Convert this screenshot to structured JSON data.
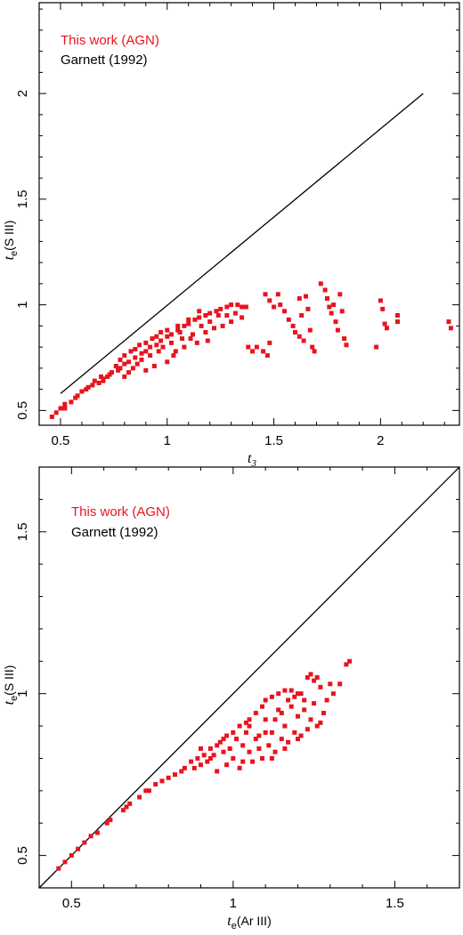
{
  "chart_data": [
    {
      "type": "scatter",
      "xlabel": {
        "var": "t",
        "sub": "3",
        "paren": ""
      },
      "ylabel": {
        "var": "t",
        "sub": "e",
        "paren": "(S III)"
      },
      "xlim": [
        0.4,
        2.37
      ],
      "ylim": [
        0.43,
        2.43
      ],
      "xticks": [
        0.5,
        1,
        1.5,
        2
      ],
      "xtick_labels": [
        "0.5",
        "1",
        "1.5",
        "2"
      ],
      "yticks": [
        0.5,
        1,
        1.5,
        2
      ],
      "ytick_labels": [
        "0.5",
        "1",
        "1.5",
        "2"
      ],
      "legend": {
        "placement": "top-left",
        "entries": [
          "This work (AGN)",
          "Garnett (1992)"
        ]
      },
      "series": [
        {
          "name": "This work (AGN)",
          "color": "#e8141e",
          "points": [
            [
              0.46,
              0.47
            ],
            [
              0.48,
              0.49
            ],
            [
              0.5,
              0.51
            ],
            [
              0.52,
              0.53
            ],
            [
              0.52,
              0.51
            ],
            [
              0.55,
              0.54
            ],
            [
              0.57,
              0.56
            ],
            [
              0.58,
              0.57
            ],
            [
              0.6,
              0.59
            ],
            [
              0.62,
              0.6
            ],
            [
              0.65,
              0.62
            ],
            [
              0.68,
              0.63
            ],
            [
              0.7,
              0.65
            ],
            [
              0.72,
              0.66
            ],
            [
              0.74,
              0.68
            ],
            [
              0.77,
              0.69
            ],
            [
              0.78,
              0.7
            ],
            [
              0.8,
              0.72
            ],
            [
              0.82,
              0.73
            ],
            [
              0.85,
              0.75
            ],
            [
              0.88,
              0.77
            ],
            [
              0.9,
              0.78
            ],
            [
              0.92,
              0.8
            ],
            [
              0.95,
              0.81
            ],
            [
              0.97,
              0.83
            ],
            [
              1.0,
              0.85
            ],
            [
              1.02,
              0.86
            ],
            [
              1.05,
              0.88
            ],
            [
              1.08,
              0.9
            ],
            [
              1.1,
              0.91
            ],
            [
              1.13,
              0.93
            ],
            [
              1.15,
              0.94
            ],
            [
              1.18,
              0.95
            ],
            [
              1.2,
              0.96
            ],
            [
              1.23,
              0.97
            ],
            [
              1.25,
              0.98
            ],
            [
              1.28,
              0.99
            ],
            [
              1.3,
              1.0
            ],
            [
              1.33,
              1.0
            ],
            [
              1.35,
              0.99
            ],
            [
              0.7,
              0.64
            ],
            [
              0.73,
              0.67
            ],
            [
              0.76,
              0.71
            ],
            [
              0.78,
              0.74
            ],
            [
              0.8,
              0.76
            ],
            [
              0.82,
              0.68
            ],
            [
              0.84,
              0.7
            ],
            [
              0.85,
              0.79
            ],
            [
              0.86,
              0.72
            ],
            [
              0.88,
              0.74
            ],
            [
              0.9,
              0.82
            ],
            [
              0.9,
              0.69
            ],
            [
              0.92,
              0.76
            ],
            [
              0.94,
              0.71
            ],
            [
              0.95,
              0.85
            ],
            [
              0.96,
              0.78
            ],
            [
              0.98,
              0.8
            ],
            [
              1.0,
              0.73
            ],
            [
              1.0,
              0.88
            ],
            [
              1.02,
              0.82
            ],
            [
              1.04,
              0.78
            ],
            [
              1.05,
              0.9
            ],
            [
              1.07,
              0.84
            ],
            [
              1.08,
              0.8
            ],
            [
              1.1,
              0.93
            ],
            [
              1.12,
              0.86
            ],
            [
              1.14,
              0.82
            ],
            [
              1.16,
              0.9
            ],
            [
              1.18,
              0.87
            ],
            [
              1.2,
              0.92
            ],
            [
              1.22,
              0.89
            ],
            [
              1.24,
              0.95
            ],
            [
              1.26,
              0.9
            ],
            [
              1.28,
              0.95
            ],
            [
              1.3,
              0.92
            ],
            [
              1.32,
              0.96
            ],
            [
              1.35,
              0.94
            ],
            [
              1.37,
              0.99
            ],
            [
              0.8,
              0.66
            ],
            [
              0.83,
              0.78
            ],
            [
              0.87,
              0.81
            ],
            [
              0.93,
              0.84
            ],
            [
              0.97,
              0.87
            ],
            [
              1.03,
              0.76
            ],
            [
              1.06,
              0.87
            ],
            [
              1.11,
              0.84
            ],
            [
              1.15,
              0.97
            ],
            [
              1.19,
              0.83
            ],
            [
              0.63,
              0.61
            ],
            [
              0.66,
              0.64
            ],
            [
              0.69,
              0.66
            ],
            [
              1.42,
              0.8
            ],
            [
              1.45,
              0.78
            ],
            [
              1.47,
              0.76
            ],
            [
              1.48,
              0.82
            ],
            [
              1.38,
              0.8
            ],
            [
              1.4,
              0.78
            ],
            [
              1.46,
              1.05
            ],
            [
              1.48,
              1.02
            ],
            [
              1.5,
              0.99
            ],
            [
              1.52,
              1.05
            ],
            [
              1.53,
              1.0
            ],
            [
              1.55,
              0.97
            ],
            [
              1.57,
              0.93
            ],
            [
              1.59,
              0.9
            ],
            [
              1.6,
              0.87
            ],
            [
              1.62,
              0.85
            ],
            [
              1.64,
              0.83
            ],
            [
              1.62,
              1.03
            ],
            [
              1.63,
              0.95
            ],
            [
              1.65,
              1.04
            ],
            [
              1.66,
              0.98
            ],
            [
              1.67,
              0.88
            ],
            [
              1.68,
              0.8
            ],
            [
              1.69,
              0.78
            ],
            [
              1.72,
              1.1
            ],
            [
              1.74,
              1.07
            ],
            [
              1.75,
              1.03
            ],
            [
              1.76,
              0.99
            ],
            [
              1.77,
              0.96
            ],
            [
              1.78,
              1.0
            ],
            [
              1.79,
              0.92
            ],
            [
              1.8,
              0.88
            ],
            [
              1.81,
              1.05
            ],
            [
              1.82,
              0.97
            ],
            [
              1.83,
              0.84
            ],
            [
              1.84,
              0.81
            ],
            [
              1.98,
              0.8
            ],
            [
              2.0,
              1.02
            ],
            [
              2.01,
              0.98
            ],
            [
              2.02,
              0.91
            ],
            [
              2.03,
              0.89
            ],
            [
              2.08,
              0.95
            ],
            [
              2.08,
              0.92
            ],
            [
              2.32,
              0.92
            ],
            [
              2.33,
              0.89
            ]
          ]
        },
        {
          "name": "Garnett (1992)",
          "color": "#000000",
          "style": "line",
          "points": [
            [
              0.5,
              0.58
            ],
            [
              2.2,
              2.0
            ]
          ]
        }
      ]
    },
    {
      "type": "scatter",
      "xlabel": {
        "var": "t",
        "sub": "e",
        "paren": "(Ar III)"
      },
      "ylabel": {
        "var": "t",
        "sub": "e",
        "paren": "(S III)"
      },
      "xlim": [
        0.4,
        1.7
      ],
      "ylim": [
        0.4,
        1.7
      ],
      "xticks": [
        0.5,
        1,
        1.5
      ],
      "xtick_labels": [
        "0.5",
        "1",
        "1.5"
      ],
      "yticks": [
        0.5,
        1,
        1.5
      ],
      "ytick_labels": [
        "0.5",
        "1",
        "1.5"
      ],
      "legend": {
        "placement": "top-left",
        "entries": [
          "This work (AGN)",
          "Garnett (1992)"
        ]
      },
      "series": [
        {
          "name": "This work (AGN)",
          "color": "#e8141e",
          "points": [
            [
              0.46,
              0.46
            ],
            [
              0.48,
              0.48
            ],
            [
              0.5,
              0.5
            ],
            [
              0.52,
              0.52
            ],
            [
              0.54,
              0.54
            ],
            [
              0.56,
              0.56
            ],
            [
              0.58,
              0.57
            ],
            [
              0.61,
              0.6
            ],
            [
              0.62,
              0.61
            ],
            [
              0.66,
              0.64
            ],
            [
              0.67,
              0.65
            ],
            [
              0.68,
              0.66
            ],
            [
              0.71,
              0.68
            ],
            [
              0.73,
              0.7
            ],
            [
              0.74,
              0.7
            ],
            [
              0.76,
              0.72
            ],
            [
              0.78,
              0.73
            ],
            [
              0.8,
              0.74
            ],
            [
              0.82,
              0.75
            ],
            [
              0.84,
              0.76
            ],
            [
              0.85,
              0.77
            ],
            [
              0.87,
              0.79
            ],
            [
              0.89,
              0.8
            ],
            [
              0.9,
              0.78
            ],
            [
              0.91,
              0.81
            ],
            [
              0.93,
              0.83
            ],
            [
              0.95,
              0.84
            ],
            [
              0.97,
              0.86
            ],
            [
              0.98,
              0.87
            ],
            [
              1.0,
              0.88
            ],
            [
              1.02,
              0.9
            ],
            [
              1.04,
              0.91
            ],
            [
              1.05,
              0.92
            ],
            [
              1.07,
              0.94
            ],
            [
              1.09,
              0.96
            ],
            [
              1.1,
              0.98
            ],
            [
              1.12,
              0.99
            ],
            [
              1.14,
              1.0
            ],
            [
              1.16,
              1.01
            ],
            [
              1.18,
              1.01
            ],
            [
              1.2,
              1.0
            ],
            [
              1.22,
              0.98
            ],
            [
              1.23,
              1.05
            ],
            [
              1.25,
              1.04
            ],
            [
              1.27,
              1.02
            ],
            [
              1.3,
              1.03
            ],
            [
              1.33,
              1.03
            ],
            [
              1.35,
              1.09
            ],
            [
              1.36,
              1.1
            ],
            [
              0.88,
              0.77
            ],
            [
              0.9,
              0.83
            ],
            [
              0.92,
              0.79
            ],
            [
              0.94,
              0.81
            ],
            [
              0.95,
              0.76
            ],
            [
              0.96,
              0.85
            ],
            [
              0.98,
              0.78
            ],
            [
              1.0,
              0.8
            ],
            [
              1.02,
              0.77
            ],
            [
              1.03,
              0.84
            ],
            [
              1.05,
              0.82
            ],
            [
              1.06,
              0.79
            ],
            [
              1.08,
              0.87
            ],
            [
              1.09,
              0.8
            ],
            [
              1.1,
              0.92
            ],
            [
              1.11,
              0.84
            ],
            [
              1.12,
              0.88
            ],
            [
              1.13,
              0.82
            ],
            [
              1.14,
              0.95
            ],
            [
              1.15,
              0.86
            ],
            [
              1.16,
              0.9
            ],
            [
              1.17,
              0.85
            ],
            [
              1.18,
              0.96
            ],
            [
              1.19,
              0.88
            ],
            [
              1.2,
              0.93
            ],
            [
              1.21,
              0.87
            ],
            [
              1.22,
              0.95
            ],
            [
              1.24,
              0.92
            ],
            [
              1.25,
              0.97
            ],
            [
              1.26,
              0.9
            ],
            [
              1.28,
              0.94
            ],
            [
              1.05,
              0.9
            ],
            [
              1.07,
              0.86
            ],
            [
              1.1,
              0.88
            ],
            [
              1.13,
              0.92
            ],
            [
              1.15,
              0.94
            ],
            [
              1.17,
              0.98
            ],
            [
              1.19,
              0.99
            ],
            [
              1.21,
              1.0
            ],
            [
              0.99,
              0.83
            ],
            [
              1.01,
              0.86
            ],
            [
              1.04,
              0.88
            ],
            [
              0.93,
              0.8
            ],
            [
              0.97,
              0.82
            ],
            [
              1.03,
              0.79
            ],
            [
              1.08,
              0.83
            ],
            [
              1.12,
              0.8
            ],
            [
              1.16,
              0.83
            ],
            [
              1.2,
              0.86
            ],
            [
              1.23,
              0.89
            ],
            [
              1.27,
              0.91
            ],
            [
              1.29,
              0.98
            ],
            [
              1.31,
              1.0
            ],
            [
              1.26,
              1.05
            ],
            [
              1.24,
              1.06
            ]
          ]
        },
        {
          "name": "Garnett (1992)",
          "color": "#000000",
          "style": "line",
          "points": [
            [
              0.4,
              0.4
            ],
            [
              1.7,
              1.7
            ]
          ]
        }
      ]
    }
  ]
}
